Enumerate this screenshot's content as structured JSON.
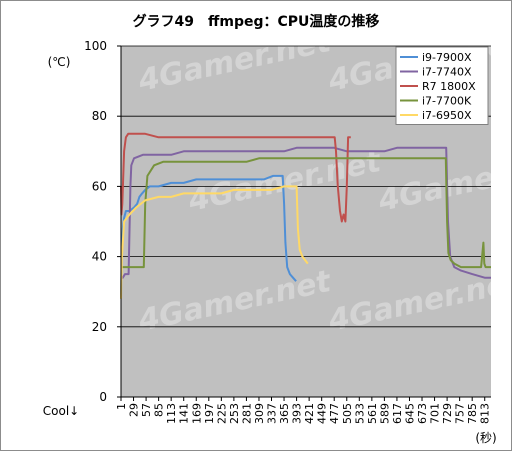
{
  "chart_data": {
    "type": "line",
    "title": "グラフ49　ffmpeg：CPU温度の推移",
    "ylabel": "(℃)",
    "xlabel": "(秒)",
    "y_note": "Cool↓",
    "watermark": "4Gamer.net",
    "ylim": [
      0,
      100
    ],
    "yticks": [
      0,
      20,
      40,
      60,
      80,
      100
    ],
    "xlim": [
      1,
      827
    ],
    "x_ticks": [
      1,
      29,
      57,
      85,
      113,
      141,
      169,
      197,
      225,
      253,
      281,
      309,
      337,
      365,
      393,
      421,
      449,
      477,
      505,
      533,
      561,
      589,
      617,
      645,
      673,
      701,
      729,
      757,
      785,
      813
    ],
    "grid": "horizontal",
    "legend_position": "top-right",
    "plot_background": "#c0c0c0",
    "series": [
      {
        "name": "i9-7900X",
        "color": "#4f8fd6",
        "x": [
          1,
          3,
          5,
          8,
          12,
          20,
          30,
          37,
          42,
          48,
          55,
          65,
          85,
          113,
          141,
          169,
          197,
          225,
          253,
          281,
          300,
          320,
          340,
          355,
          362,
          365,
          368,
          372,
          378,
          385,
          392
        ],
        "y": [
          28,
          43,
          48,
          51,
          53,
          53,
          54,
          55,
          57,
          58,
          59,
          60,
          60,
          61,
          61,
          62,
          62,
          62,
          62,
          62,
          62,
          62,
          63,
          63,
          63,
          55,
          44,
          37,
          35,
          34,
          33
        ]
      },
      {
        "name": "i7-7740X",
        "color": "#8064a2",
        "x": [
          1,
          5,
          10,
          18,
          22,
          24,
          30,
          50,
          57,
          85,
          113,
          141,
          169,
          197,
          225,
          253,
          281,
          309,
          337,
          365,
          393,
          421,
          449,
          477,
          505,
          533,
          561,
          589,
          617,
          645,
          673,
          701,
          727,
          731,
          736,
          745,
          760,
          785,
          813,
          827
        ],
        "y": [
          34,
          34,
          35,
          35,
          60,
          66,
          68,
          69,
          69,
          69,
          69,
          70,
          70,
          70,
          70,
          70,
          70,
          70,
          70,
          70,
          71,
          71,
          71,
          71,
          70,
          70,
          70,
          70,
          71,
          71,
          71,
          71,
          71,
          50,
          40,
          37,
          36,
          35,
          34,
          34
        ]
      },
      {
        "name": "R7 1800X",
        "color": "#c0504d",
        "x": [
          1,
          2,
          4,
          8,
          12,
          17,
          25,
          40,
          55,
          85,
          113,
          141,
          169,
          197,
          225,
          253,
          281,
          309,
          337,
          365,
          393,
          421,
          449,
          470,
          478,
          481,
          485,
          490,
          494,
          498,
          502,
          505,
          508,
          514
        ],
        "y": [
          60,
          52,
          55,
          70,
          74,
          75,
          75,
          75,
          75,
          74,
          74,
          74,
          74,
          74,
          74,
          74,
          74,
          74,
          74,
          74,
          74,
          74,
          74,
          74,
          74,
          70,
          60,
          53,
          50,
          52,
          50,
          60,
          74,
          74
        ]
      },
      {
        "name": "i7-7700K",
        "color": "#77933c",
        "x": [
          1,
          10,
          20,
          30,
          40,
          52,
          55,
          60,
          75,
          95,
          113,
          141,
          169,
          197,
          225,
          253,
          281,
          309,
          337,
          365,
          393,
          421,
          449,
          477,
          505,
          533,
          561,
          589,
          617,
          645,
          673,
          701,
          726,
          729,
          732,
          737,
          745,
          760,
          785,
          805,
          810,
          812,
          815,
          827
        ],
        "y": [
          37,
          37,
          37,
          37,
          37,
          37,
          55,
          63,
          66,
          67,
          67,
          67,
          67,
          67,
          67,
          67,
          67,
          68,
          68,
          68,
          68,
          68,
          68,
          68,
          68,
          68,
          68,
          68,
          68,
          68,
          68,
          68,
          68,
          50,
          41,
          39,
          38,
          37,
          37,
          37,
          44,
          38,
          37,
          37
        ]
      },
      {
        "name": "i7-6950X",
        "color": "#ffd966",
        "x": [
          1,
          3,
          8,
          20,
          35,
          55,
          85,
          113,
          141,
          169,
          197,
          225,
          253,
          281,
          309,
          337,
          365,
          385,
          393,
          396,
          400,
          406,
          412,
          418
        ],
        "y": [
          28,
          40,
          50,
          52,
          54,
          56,
          57,
          57,
          58,
          58,
          58,
          58,
          59,
          59,
          59,
          59,
          60,
          60,
          60,
          48,
          42,
          40,
          39,
          38
        ]
      }
    ]
  }
}
